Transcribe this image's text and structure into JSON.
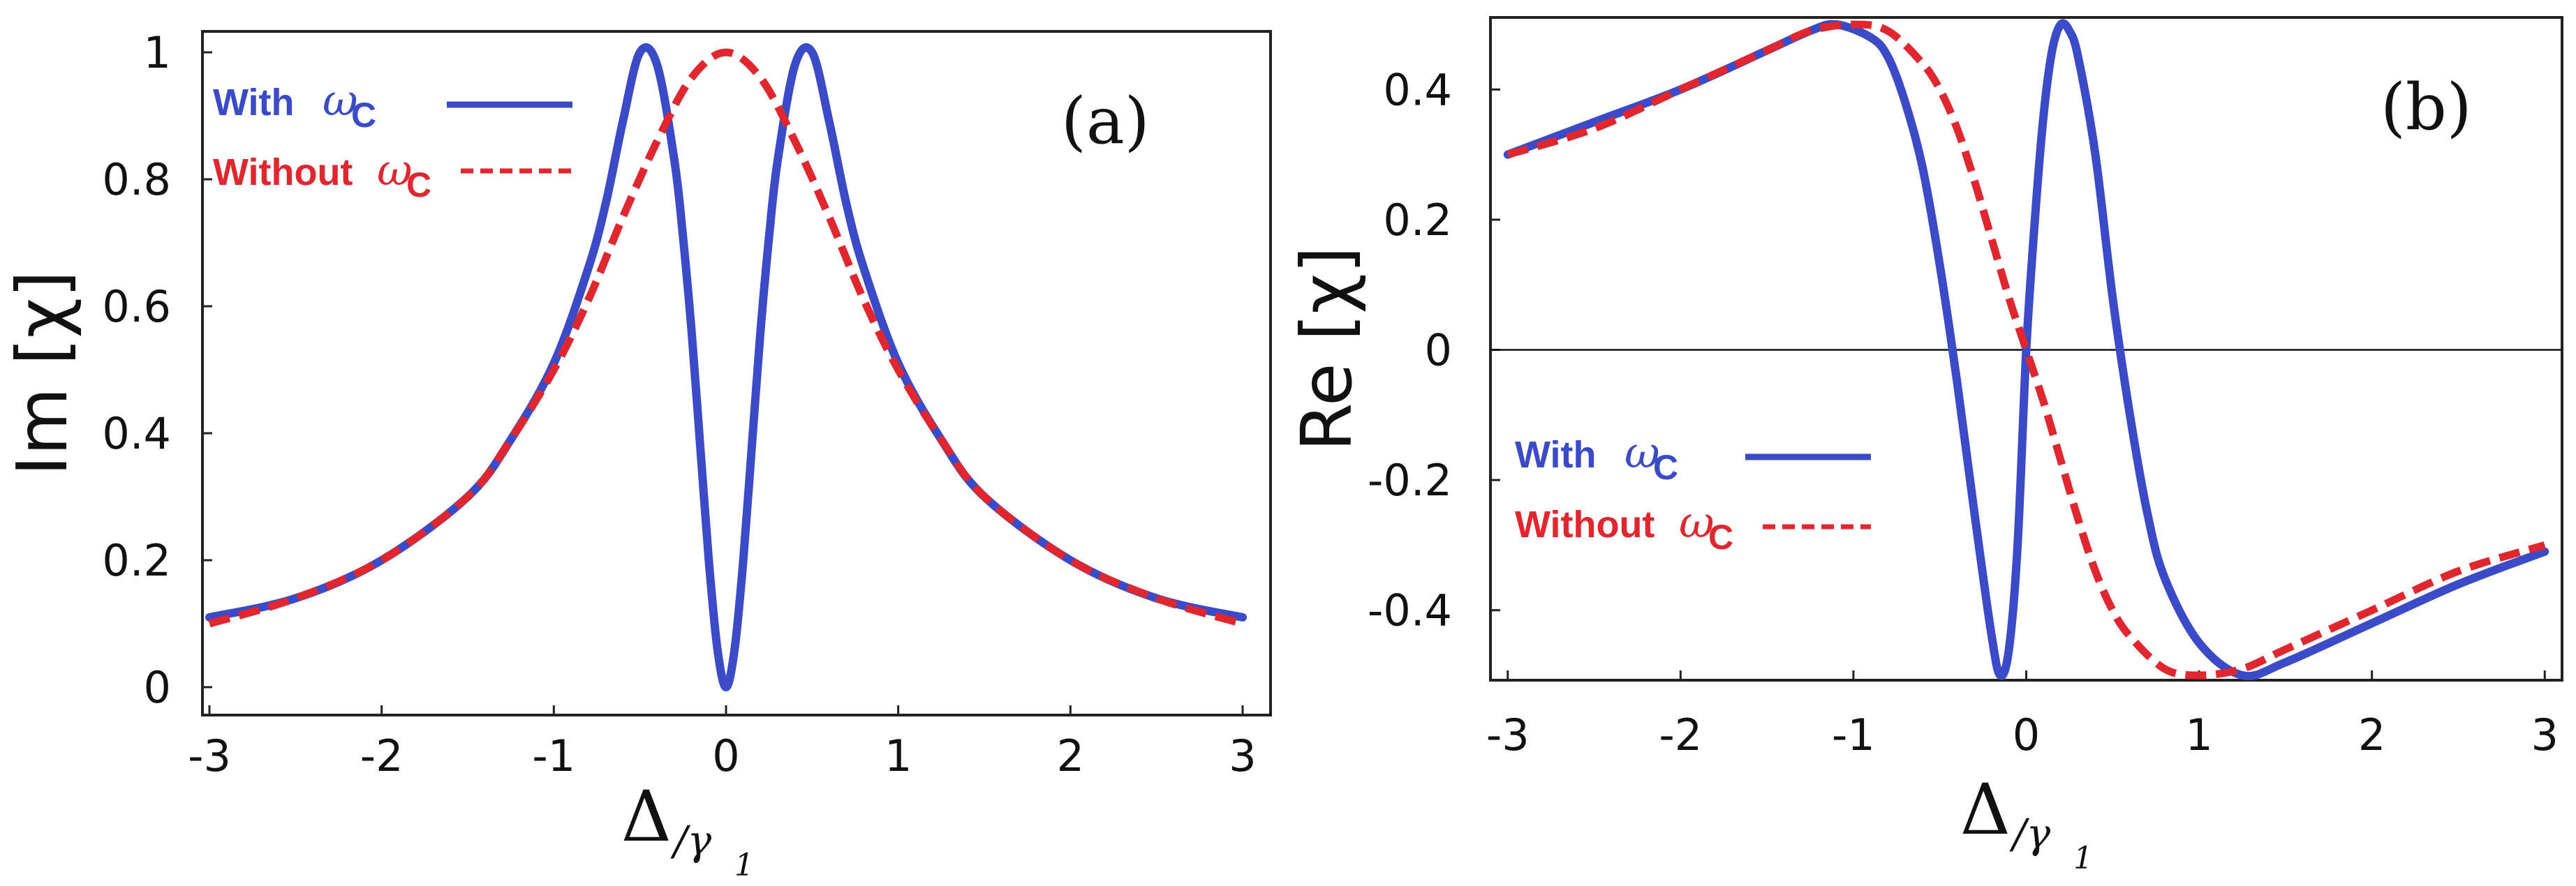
{
  "chart_data": [
    {
      "type": "line",
      "panel_label": "(a)",
      "ylabel": "Im [χ]",
      "xlabel_main": "Δ",
      "xlabel_sub": "/γ",
      "xlabel_subsub": "1",
      "xlim": [
        -3,
        3
      ],
      "ylim": [
        0,
        1
      ],
      "xticks": [
        "-3",
        "-2",
        "-1",
        "0",
        "1",
        "2",
        "3"
      ],
      "yticks": [
        "0",
        "0.2",
        "0.4",
        "0.6",
        "0.8",
        "1"
      ],
      "legend_position": "top-left",
      "series": [
        {
          "name": "With ωc",
          "legend_text": "With",
          "legend_symbol": "ω",
          "legend_sub": "C",
          "color": "#3b4bc8",
          "style": "solid",
          "x": [
            -3,
            -2.5,
            -2,
            -1.5,
            -1.25,
            -1,
            -0.8,
            -0.7,
            -0.6,
            -0.5,
            -0.4,
            -0.3,
            -0.25,
            -0.2,
            -0.15,
            -0.1,
            -0.05,
            0,
            0.05,
            0.1,
            0.15,
            0.2,
            0.25,
            0.3,
            0.4,
            0.5,
            0.6,
            0.7,
            0.8,
            1,
            1.25,
            1.5,
            2,
            2.5,
            3
          ],
          "y": [
            0.11,
            0.14,
            0.2,
            0.3,
            0.39,
            0.51,
            0.66,
            0.76,
            0.89,
            1.0,
            0.98,
            0.83,
            0.71,
            0.56,
            0.38,
            0.2,
            0.06,
            0.0,
            0.06,
            0.2,
            0.38,
            0.56,
            0.71,
            0.83,
            0.98,
            1.0,
            0.89,
            0.76,
            0.66,
            0.51,
            0.39,
            0.3,
            0.2,
            0.14,
            0.11
          ]
        },
        {
          "name": "Without ωc",
          "legend_text": "Without",
          "legend_symbol": "ω",
          "legend_sub": "C",
          "color": "#e0262e",
          "style": "dashed",
          "x": [
            -3,
            -2.5,
            -2,
            -1.5,
            -1.25,
            -1,
            -0.8,
            -0.6,
            -0.4,
            -0.2,
            0,
            0.2,
            0.4,
            0.6,
            0.8,
            1,
            1.25,
            1.5,
            2,
            2.5,
            3
          ],
          "y": [
            0.1,
            0.14,
            0.2,
            0.3,
            0.39,
            0.5,
            0.61,
            0.74,
            0.86,
            0.96,
            1.0,
            0.96,
            0.86,
            0.74,
            0.61,
            0.5,
            0.39,
            0.3,
            0.2,
            0.14,
            0.1
          ]
        }
      ]
    },
    {
      "type": "line",
      "panel_label": "(b)",
      "ylabel": "Re [χ]",
      "xlabel_main": "Δ",
      "xlabel_sub": "/γ",
      "xlabel_subsub": "1",
      "xlim": [
        -3.1,
        3.1
      ],
      "ylim": [
        -0.5,
        0.5
      ],
      "xticks": [
        "-3",
        "-2",
        "-1",
        "0",
        "1",
        "2",
        "3"
      ],
      "yticks": [
        "-0.4",
        "-0.2",
        "0",
        "0.2",
        "0.4"
      ],
      "zero_line": true,
      "legend_position": "bottom-left",
      "series": [
        {
          "name": "With ωc",
          "legend_text": "With",
          "legend_symbol": "ω",
          "legend_sub": "C",
          "color": "#3b4bc8",
          "style": "solid",
          "x": [
            -3,
            -2.5,
            -2,
            -1.5,
            -1.25,
            -1.1,
            -0.9,
            -0.8,
            -0.7,
            -0.6,
            -0.5,
            -0.4,
            -0.3,
            -0.2,
            -0.15,
            -0.1,
            -0.05,
            0,
            0.05,
            0.1,
            0.15,
            0.2,
            0.25,
            0.3,
            0.4,
            0.5,
            0.6,
            0.7,
            0.8,
            1,
            1.25,
            1.5,
            2,
            2.5,
            3
          ],
          "y": [
            0.3,
            0.35,
            0.4,
            0.46,
            0.49,
            0.5,
            0.48,
            0.45,
            0.38,
            0.28,
            0.13,
            -0.05,
            -0.25,
            -0.44,
            -0.5,
            -0.46,
            -0.3,
            0.0,
            0.2,
            0.36,
            0.46,
            0.5,
            0.49,
            0.45,
            0.3,
            0.08,
            -0.1,
            -0.25,
            -0.35,
            -0.45,
            -0.5,
            -0.48,
            -0.42,
            -0.36,
            -0.31
          ]
        },
        {
          "name": "Without ωc",
          "legend_text": "Without",
          "legend_symbol": "ω",
          "legend_sub": "C",
          "color": "#e0262e",
          "style": "dashed",
          "x": [
            -3,
            -2.5,
            -2,
            -1.5,
            -1.25,
            -1,
            -0.8,
            -0.6,
            -0.5,
            -0.4,
            -0.3,
            -0.2,
            -0.1,
            0,
            0.1,
            0.2,
            0.3,
            0.4,
            0.5,
            0.6,
            0.8,
            1,
            1.25,
            1.5,
            2,
            2.5,
            3
          ],
          "y": [
            0.3,
            0.34,
            0.4,
            0.46,
            0.49,
            0.5,
            0.49,
            0.44,
            0.4,
            0.34,
            0.26,
            0.17,
            0.08,
            0.0,
            -0.08,
            -0.17,
            -0.26,
            -0.34,
            -0.4,
            -0.44,
            -0.49,
            -0.5,
            -0.49,
            -0.46,
            -0.4,
            -0.34,
            -0.3
          ]
        }
      ]
    }
  ]
}
